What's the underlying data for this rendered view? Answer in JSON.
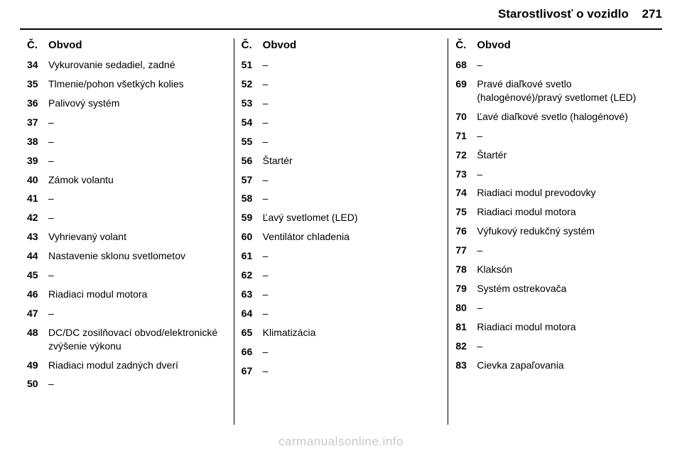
{
  "header": {
    "title": "Starostlivosť o vozidlo",
    "page_number": "271"
  },
  "column_header": {
    "num_label": "Č.",
    "circuit_label": "Obvod"
  },
  "columns": [
    [
      {
        "num": "34",
        "label": "Vykurovanie sedadiel, zadné"
      },
      {
        "num": "35",
        "label": "Tlmenie/pohon všetkých kolies"
      },
      {
        "num": "36",
        "label": "Palivový systém"
      },
      {
        "num": "37",
        "label": "–"
      },
      {
        "num": "38",
        "label": "–"
      },
      {
        "num": "39",
        "label": "–"
      },
      {
        "num": "40",
        "label": "Zámok volantu"
      },
      {
        "num": "41",
        "label": "–"
      },
      {
        "num": "42",
        "label": "–"
      },
      {
        "num": "43",
        "label": "Vyhrievaný volant"
      },
      {
        "num": "44",
        "label": "Nastavenie sklonu svetlometov"
      },
      {
        "num": "45",
        "label": "–"
      },
      {
        "num": "46",
        "label": "Riadiaci modul motora"
      },
      {
        "num": "47",
        "label": "–"
      },
      {
        "num": "48",
        "label": "DC/DC zosilňovací obvod/elektronické zvýšenie výkonu"
      },
      {
        "num": "49",
        "label": "Riadiaci modul zadných dverí"
      },
      {
        "num": "50",
        "label": "–"
      }
    ],
    [
      {
        "num": "51",
        "label": "–"
      },
      {
        "num": "52",
        "label": "–"
      },
      {
        "num": "53",
        "label": "–"
      },
      {
        "num": "54",
        "label": "–"
      },
      {
        "num": "55",
        "label": "–"
      },
      {
        "num": "56",
        "label": "Štartér"
      },
      {
        "num": "57",
        "label": "–"
      },
      {
        "num": "58",
        "label": "–"
      },
      {
        "num": "59",
        "label": "Ľavý svetlomet (LED)"
      },
      {
        "num": "60",
        "label": "Ventilátor chladenia"
      },
      {
        "num": "61",
        "label": "–"
      },
      {
        "num": "62",
        "label": "–"
      },
      {
        "num": "63",
        "label": "–"
      },
      {
        "num": "64",
        "label": "–"
      },
      {
        "num": "65",
        "label": "Klimatizácia"
      },
      {
        "num": "66",
        "label": "–"
      },
      {
        "num": "67",
        "label": "–"
      }
    ],
    [
      {
        "num": "68",
        "label": "–"
      },
      {
        "num": "69",
        "label": "Pravé diaľkové svetlo (halogénové)/pravý svetlomet (LED)"
      },
      {
        "num": "70",
        "label": "Ľavé diaľkové svetlo (halogénové)"
      },
      {
        "num": "71",
        "label": "–"
      },
      {
        "num": "72",
        "label": "Štartér"
      },
      {
        "num": "73",
        "label": "–"
      },
      {
        "num": "74",
        "label": "Riadiaci modul prevodovky"
      },
      {
        "num": "75",
        "label": "Riadiaci modul motora"
      },
      {
        "num": "76",
        "label": "Výfukový redukčný systém"
      },
      {
        "num": "77",
        "label": "–"
      },
      {
        "num": "78",
        "label": "Klaksón"
      },
      {
        "num": "79",
        "label": "Systém ostrekovača"
      },
      {
        "num": "80",
        "label": "–"
      },
      {
        "num": "81",
        "label": "Riadiaci modul motora"
      },
      {
        "num": "82",
        "label": "–"
      },
      {
        "num": "83",
        "label": "Cievka zapaľovania"
      }
    ]
  ],
  "footer": {
    "text": "carmanualsonline.info"
  }
}
